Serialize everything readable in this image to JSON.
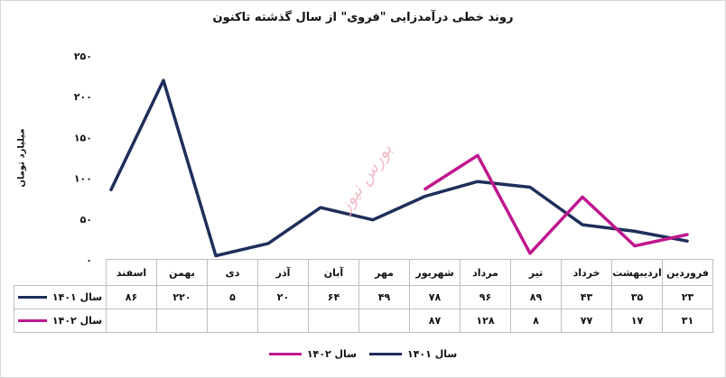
{
  "chart_data": {
    "type": "line",
    "title": "روند خطی درآمدزایی \"فروی\" از سال گذشته تاکنون",
    "ylabel": "میلیارد تومان",
    "xlabel": "",
    "ylim": [
      0,
      250
    ],
    "yticks": [
      "۰",
      "۵۰",
      "۱۰۰",
      "۱۵۰",
      "۲۰۰",
      "۲۵۰"
    ],
    "grid": false,
    "legend": "bottom",
    "categories": [
      "فروردین",
      "اردیبهشت",
      "خرداد",
      "تیر",
      "مرداد",
      "شهریور",
      "مهر",
      "آبان",
      "آذر",
      "دی",
      "بهمن",
      "اسفند"
    ],
    "series": [
      {
        "name": "سال ۱۴۰۱",
        "color": "#1f2e5a",
        "values": [
          23,
          35,
          43,
          89,
          96,
          78,
          49,
          64,
          20,
          5,
          220,
          86
        ],
        "labels": [
          "۲۳",
          "۳۵",
          "۴۳",
          "۸۹",
          "۹۶",
          "۷۸",
          "۴۹",
          "۶۴",
          "۲۰",
          "۵",
          "۲۲۰",
          "۸۶"
        ]
      },
      {
        "name": "سال ۱۴۰۲",
        "color": "#c0168e",
        "values": [
          31,
          17,
          77,
          8,
          128,
          87,
          null,
          null,
          null,
          null,
          null,
          null
        ],
        "labels": [
          "۳۱",
          "۱۷",
          "۷۷",
          "۸",
          "۱۲۸",
          "۸۷",
          "",
          "",
          "",
          "",
          "",
          ""
        ]
      }
    ],
    "watermark": "بورس نیوز"
  }
}
